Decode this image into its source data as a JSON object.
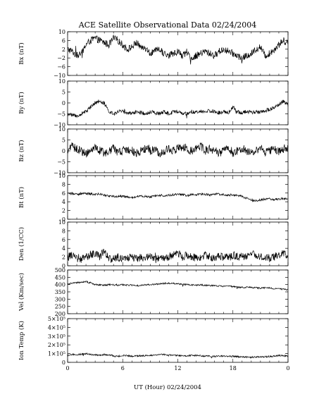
{
  "figure": {
    "title": "ACE Satellite Observational Data   02/24/2004",
    "xlabel": "UT (Hour)   02/24/2004"
  },
  "chart_data": [
    {
      "type": "line",
      "ylabel": "Bx (nT)",
      "ylim": [
        -10,
        10
      ],
      "yticks": [
        "10",
        "6",
        "2",
        "−2",
        "−6",
        "−10"
      ],
      "ytick_values": [
        10,
        6,
        2,
        -2,
        -6,
        -10
      ],
      "xlim": [
        0,
        24
      ],
      "xticks": [
        "0",
        "6",
        "12",
        "18",
        "0"
      ],
      "xtick_values": [
        0,
        6,
        12,
        18,
        24
      ],
      "grid": false,
      "series": [
        {
          "x": [
            0,
            0.5,
            1,
            1.5,
            2,
            2.5,
            3,
            3.5,
            4,
            4.5,
            5,
            5.5,
            6,
            6.5,
            7,
            7.5,
            8,
            8.5,
            9,
            9.5,
            10,
            10.5,
            11,
            11.5,
            12,
            12.5,
            13,
            13.5,
            14,
            14.5,
            15,
            15.5,
            16,
            16.5,
            17,
            17.5,
            18,
            18.5,
            19,
            19.5,
            20,
            20.5,
            21,
            21.5,
            22,
            22.5,
            23,
            23.5,
            24
          ],
          "values": [
            2,
            1,
            -1,
            0,
            4,
            6,
            7,
            6,
            5,
            4,
            7,
            6,
            4,
            2,
            3,
            5,
            3,
            2,
            0,
            1,
            2,
            0,
            -1,
            0,
            1,
            -1,
            0,
            -2,
            -1,
            0,
            1,
            0,
            -1,
            1,
            2,
            1,
            0,
            -1,
            -2,
            -1,
            0,
            2,
            3,
            -1,
            0,
            2,
            4,
            6,
            5
          ],
          "noise": 1.6
        }
      ]
    },
    {
      "type": "line",
      "ylabel": "By (nT)",
      "ylim": [
        -10,
        10
      ],
      "yticks": [
        "10",
        "5",
        "0",
        "−5",
        "−10"
      ],
      "ytick_values": [
        10,
        5,
        0,
        -5,
        -10
      ],
      "xlim": [
        0,
        24
      ],
      "xticks": [
        "0",
        "6",
        "12",
        "18",
        "0"
      ],
      "xtick_values": [
        0,
        6,
        12,
        18,
        24
      ],
      "grid": false,
      "series": [
        {
          "x": [
            0,
            0.5,
            1,
            1.5,
            2,
            2.5,
            3,
            3.5,
            4,
            4.5,
            5,
            5.5,
            6,
            6.5,
            7,
            7.5,
            8,
            8.5,
            9,
            9.5,
            10,
            10.5,
            11,
            11.5,
            12,
            12.5,
            13,
            13.5,
            14,
            14.5,
            15,
            15.5,
            16,
            16.5,
            17,
            17.5,
            18,
            18.5,
            19,
            19.5,
            20,
            20.5,
            21,
            21.5,
            22,
            22.5,
            23,
            23.5,
            24
          ],
          "values": [
            -5,
            -5.5,
            -6,
            -5,
            -4,
            -2,
            0,
            1,
            0,
            -4,
            -5,
            -4,
            -4,
            -4.5,
            -5,
            -4,
            -4.5,
            -5,
            -4,
            -4.5,
            -5,
            -4,
            -5,
            -4,
            -4,
            -5,
            -5,
            -4,
            -4.5,
            -4,
            -4,
            -3.5,
            -4,
            -4.5,
            -4,
            -4.5,
            -2,
            -4,
            -4.5,
            -4,
            -4,
            -4.5,
            -4,
            -3.5,
            -3,
            -2,
            -1,
            1,
            -1
          ],
          "noise": 0.9
        }
      ]
    },
    {
      "type": "line",
      "ylabel": "Bz (nT)",
      "ylim": [
        -10,
        10
      ],
      "yticks": [
        "10",
        "5",
        "0",
        "−5",
        "−10"
      ],
      "ytick_values": [
        10,
        5,
        0,
        -5,
        -10
      ],
      "xlim": [
        0,
        24
      ],
      "xticks": [
        "0",
        "6",
        "12",
        "18",
        "0"
      ],
      "xtick_values": [
        0,
        6,
        12,
        18,
        24
      ],
      "grid": false,
      "series": [
        {
          "x": [
            0,
            0.5,
            1,
            1.5,
            2,
            2.5,
            3,
            3.5,
            4,
            4.5,
            5,
            5.5,
            6,
            6.5,
            7,
            7.5,
            8,
            8.5,
            9,
            9.5,
            10,
            10.5,
            11,
            11.5,
            12,
            12.5,
            13,
            13.5,
            14,
            14.5,
            15,
            15.5,
            16,
            16.5,
            17,
            17.5,
            18,
            18.5,
            19,
            19.5,
            20,
            20.5,
            21,
            21.5,
            22,
            22.5,
            23,
            23.5,
            24
          ],
          "values": [
            0,
            2,
            1,
            0,
            -1,
            0,
            1,
            0,
            -1,
            0,
            1,
            -1,
            0,
            1,
            0,
            -1,
            0,
            1,
            0,
            1,
            -1,
            0,
            1,
            0,
            1,
            2,
            1,
            0,
            1,
            2,
            0,
            1,
            0,
            -1,
            0,
            2,
            -1,
            0,
            1,
            0,
            -1,
            0,
            1,
            -1,
            0,
            1,
            0,
            1,
            1
          ],
          "noise": 2.0
        }
      ]
    },
    {
      "type": "line",
      "ylabel": "Bt (nT)",
      "ylim": [
        0,
        10
      ],
      "yticks": [
        "10",
        "8",
        "6",
        "4",
        "2",
        "0"
      ],
      "ytick_values": [
        10,
        8,
        6,
        4,
        2,
        0
      ],
      "xlim": [
        0,
        24
      ],
      "xticks": [
        "0",
        "6",
        "12",
        "18",
        "0"
      ],
      "xtick_values": [
        0,
        6,
        12,
        18,
        24
      ],
      "grid": false,
      "series": [
        {
          "x": [
            0,
            0.5,
            1,
            1.5,
            2,
            2.5,
            3,
            3.5,
            4,
            4.5,
            5,
            5.5,
            6,
            6.5,
            7,
            7.5,
            8,
            8.5,
            9,
            9.5,
            10,
            10.5,
            11,
            11.5,
            12,
            12.5,
            13,
            13.5,
            14,
            14.5,
            15,
            15.5,
            16,
            16.5,
            17,
            17.5,
            18,
            18.5,
            19,
            19.5,
            20,
            20.5,
            21,
            21.5,
            22,
            22.5,
            23,
            23.5,
            24
          ],
          "values": [
            5.8,
            5.9,
            5.7,
            5.8,
            5.9,
            5.8,
            5.7,
            5.8,
            5.5,
            5.3,
            5.2,
            5.3,
            5.2,
            5.1,
            5.0,
            5.2,
            5.3,
            5.2,
            5.1,
            5.3,
            5.5,
            5.4,
            5.5,
            5.6,
            5.7,
            5.6,
            5.5,
            5.7,
            5.6,
            5.8,
            5.7,
            5.6,
            5.8,
            5.7,
            5.6,
            5.5,
            5.6,
            5.5,
            5.2,
            4.8,
            4.3,
            4.2,
            4.4,
            4.6,
            4.7,
            4.5,
            4.6,
            4.8,
            4.6
          ],
          "noise": 0.25
        }
      ]
    },
    {
      "type": "line",
      "ylabel": "Den (1/CC)",
      "ylim": [
        0,
        10
      ],
      "yticks": [
        "10",
        "8",
        "6",
        "4",
        "2",
        "0"
      ],
      "ytick_values": [
        10,
        8,
        6,
        4,
        2,
        0
      ],
      "xlim": [
        0,
        24
      ],
      "xticks": [
        "0",
        "6",
        "12",
        "18",
        "0"
      ],
      "xtick_values": [
        0,
        6,
        12,
        18,
        24
      ],
      "grid": false,
      "series": [
        {
          "x": [
            0,
            0.5,
            1,
            1.5,
            2,
            2.5,
            3,
            3.5,
            4,
            4.5,
            5,
            5.5,
            6,
            6.5,
            7,
            7.5,
            8,
            8.5,
            9,
            9.5,
            10,
            10.5,
            11,
            11.5,
            12,
            12.5,
            13,
            13.5,
            14,
            14.5,
            15,
            15.5,
            16,
            16.5,
            17,
            17.5,
            18,
            18.5,
            19,
            19.5,
            20,
            20.5,
            21,
            21.5,
            22,
            22.5,
            23,
            23.5,
            24
          ],
          "values": [
            2,
            2.5,
            2,
            1.5,
            2,
            2.5,
            3,
            2,
            3.5,
            1.5,
            1.8,
            2,
            1.5,
            1.8,
            2,
            1.5,
            2,
            1.8,
            2.2,
            1.5,
            2,
            1.8,
            2,
            2.5,
            3,
            2,
            2.5,
            2,
            1.8,
            2,
            2.5,
            2,
            1.8,
            2.2,
            2,
            1.8,
            2.5,
            2,
            2.2,
            2,
            3,
            2.5,
            2.2,
            2,
            1.8,
            2,
            2.5,
            3,
            2
          ],
          "noise": 0.9
        }
      ]
    },
    {
      "type": "line",
      "ylabel": "Vel (Km/sec)",
      "ylim": [
        200,
        500
      ],
      "yticks": [
        "500",
        "450",
        "400",
        "350",
        "300",
        "250",
        "200"
      ],
      "ytick_values": [
        500,
        450,
        400,
        350,
        300,
        250,
        200
      ],
      "xlim": [
        0,
        24
      ],
      "xticks": [
        "0",
        "6",
        "12",
        "18",
        "0"
      ],
      "xtick_values": [
        0,
        6,
        12,
        18,
        24
      ],
      "grid": false,
      "series": [
        {
          "x": [
            0,
            0.5,
            1,
            1.5,
            2,
            2.5,
            3,
            3.5,
            4,
            4.5,
            5,
            5.5,
            6,
            6.5,
            7,
            7.5,
            8,
            8.5,
            9,
            9.5,
            10,
            10.5,
            11,
            11.5,
            12,
            12.5,
            13,
            13.5,
            14,
            14.5,
            15,
            15.5,
            16,
            16.5,
            17,
            17.5,
            18,
            18.5,
            19,
            19.5,
            20,
            20.5,
            21,
            21.5,
            22,
            22.5,
            23,
            23.5,
            24
          ],
          "values": [
            405,
            410,
            412,
            415,
            420,
            410,
            400,
            398,
            395,
            400,
            398,
            395,
            400,
            397,
            395,
            392,
            395,
            398,
            400,
            402,
            405,
            408,
            410,
            408,
            405,
            402,
            400,
            398,
            396,
            398,
            395,
            393,
            392,
            390,
            388,
            390,
            385,
            383,
            380,
            382,
            380,
            378,
            375,
            378,
            376,
            372,
            370,
            368,
            365
          ],
          "noise": 5
        }
      ]
    },
    {
      "type": "line",
      "ylabel": "Ion Temp (K)",
      "ylim": [
        0,
        500000
      ],
      "yticks": [
        "5×10⁵",
        "4×10⁵",
        "3×10⁵",
        "2×10⁵",
        "1×10⁵",
        "0"
      ],
      "ytick_values": [
        500000,
        400000,
        300000,
        200000,
        100000,
        0
      ],
      "xlim": [
        0,
        24
      ],
      "xticks": [
        "0",
        "6",
        "12",
        "18",
        "0"
      ],
      "xtick_values": [
        0,
        6,
        12,
        18,
        24
      ],
      "grid": false,
      "series": [
        {
          "x": [
            0,
            0.5,
            1,
            1.5,
            2,
            2.5,
            3,
            3.5,
            4,
            4.5,
            5,
            5.5,
            6,
            6.5,
            7,
            7.5,
            8,
            8.5,
            9,
            9.5,
            10,
            10.5,
            11,
            11.5,
            12,
            12.5,
            13,
            13.5,
            14,
            14.5,
            15,
            15.5,
            16,
            16.5,
            17,
            17.5,
            18,
            18.5,
            19,
            19.5,
            20,
            20.5,
            21,
            21.5,
            22,
            22.5,
            23,
            23.5,
            24
          ],
          "values": [
            80000,
            90000,
            85000,
            95000,
            100000,
            90000,
            85000,
            80000,
            90000,
            85000,
            75000,
            70000,
            80000,
            75000,
            70000,
            72000,
            75000,
            78000,
            80000,
            85000,
            90000,
            88000,
            85000,
            82000,
            80000,
            78000,
            75000,
            80000,
            78000,
            75000,
            72000,
            70000,
            68000,
            70000,
            72000,
            70000,
            68000,
            65000,
            62000,
            60000,
            58000,
            60000,
            62000,
            65000,
            68000,
            70000,
            80000,
            75000,
            72000
          ],
          "noise": 9000
        }
      ]
    }
  ]
}
